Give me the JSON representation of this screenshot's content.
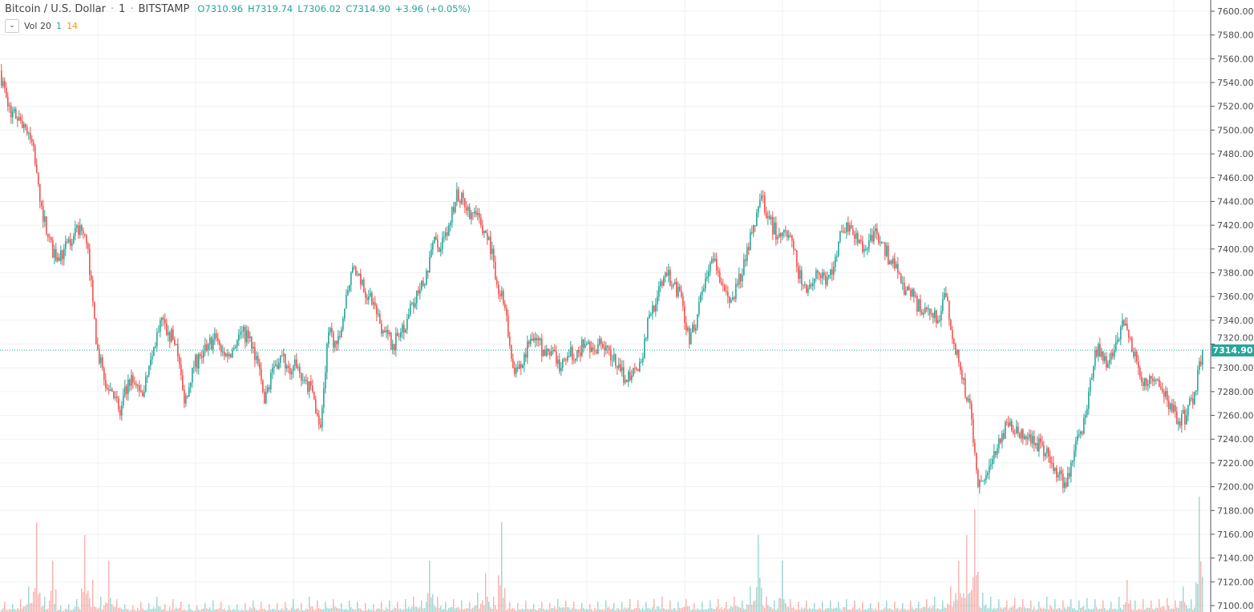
{
  "header": {
    "symbol": "Bitcoin / U.S. Dollar",
    "sep1": "·",
    "interval": "1",
    "sep2": "·",
    "exchange": "BITSTAMP",
    "open": "O7310.96",
    "high": "H7319.74",
    "low": "L7306.02",
    "close": "C7314.90",
    "change": "+3.96 (+0.05%)"
  },
  "volume_legend": {
    "label": "Vol 20",
    "value1": "1",
    "value2": "14",
    "value1_color": "#26a69a",
    "value2_color": "#f7931a"
  },
  "colors": {
    "up": "#26a69a",
    "down": "#ef5350",
    "grid": "#eef0f3",
    "last_price": "#26a69a"
  },
  "chart_data": {
    "type": "candlestick",
    "title": "Bitcoin / U.S. Dollar · 1 · BITSTAMP",
    "ylim": [
      7100,
      7600
    ],
    "grid": true,
    "y_ticks": [
      "7600.00",
      "7580.00",
      "7560.00",
      "7540.00",
      "7520.00",
      "7500.00",
      "7480.00",
      "7460.00",
      "7440.00",
      "7420.00",
      "7400.00",
      "7380.00",
      "7360.00",
      "7340.00",
      "7320.00",
      "7300.00",
      "7280.00",
      "7260.00",
      "7240.00",
      "7220.00",
      "7200.00",
      "7180.00",
      "7160.00",
      "7140.00",
      "7120.00",
      "7100.00"
    ],
    "last_price": "7314.90",
    "close": [
      7550,
      7520,
      7510,
      7505,
      7490,
      7440,
      7410,
      7390,
      7400,
      7405,
      7420,
      7400,
      7320,
      7290,
      7280,
      7260,
      7290,
      7285,
      7280,
      7310,
      7340,
      7330,
      7320,
      7270,
      7300,
      7310,
      7320,
      7325,
      7310,
      7315,
      7330,
      7325,
      7310,
      7270,
      7300,
      7310,
      7300,
      7300,
      7290,
      7280,
      7250,
      7330,
      7320,
      7350,
      7385,
      7370,
      7360,
      7345,
      7330,
      7320,
      7330,
      7345,
      7365,
      7370,
      7405,
      7400,
      7420,
      7450,
      7435,
      7430,
      7420,
      7410,
      7370,
      7350,
      7300,
      7300,
      7320,
      7325,
      7310,
      7315,
      7300,
      7310,
      7315,
      7320,
      7315,
      7320,
      7315,
      7300,
      7290,
      7300,
      7305,
      7345,
      7360,
      7380,
      7370,
      7360,
      7320,
      7345,
      7375,
      7390,
      7370,
      7355,
      7370,
      7390,
      7420,
      7445,
      7425,
      7410,
      7415,
      7400,
      7370,
      7370,
      7380,
      7370,
      7385,
      7415,
      7420,
      7405,
      7400,
      7415,
      7405,
      7390,
      7380,
      7365,
      7360,
      7345,
      7345,
      7340,
      7360,
      7320,
      7290,
      7270,
      7200,
      7210,
      7230,
      7245,
      7255,
      7245,
      7240,
      7235,
      7235,
      7220,
      7210,
      7200,
      7230,
      7245,
      7290,
      7320,
      7300,
      7315,
      7340,
      7325,
      7300,
      7285,
      7290,
      7280,
      7270,
      7255,
      7260,
      7280,
      7314.9
    ],
    "volume": [
      5,
      8,
      6,
      10,
      20,
      70,
      12,
      40,
      5,
      6,
      10,
      60,
      25,
      12,
      40,
      10,
      6,
      5,
      8,
      7,
      12,
      6,
      10,
      8,
      6,
      5,
      7,
      9,
      8,
      5,
      6,
      7,
      9,
      8,
      6,
      7,
      8,
      10,
      7,
      12,
      9,
      8,
      10,
      7,
      9,
      8,
      7,
      6,
      8,
      9,
      8,
      10,
      12,
      9,
      40,
      12,
      8,
      10,
      9,
      8,
      15,
      30,
      12,
      70,
      8,
      7,
      9,
      6,
      8,
      7,
      10,
      9,
      8,
      7,
      6,
      8,
      9,
      7,
      8,
      10,
      9,
      8,
      10,
      12,
      9,
      8,
      10,
      7,
      8,
      9,
      10,
      8,
      12,
      9,
      20,
      60,
      12,
      9,
      40,
      10,
      8,
      9,
      7,
      8,
      9,
      8,
      10,
      9,
      8,
      7,
      8,
      9,
      8,
      7,
      9,
      8,
      10,
      12,
      9,
      20,
      40,
      60,
      80,
      15,
      12,
      10,
      9,
      11,
      10,
      9,
      8,
      12,
      10,
      9,
      10,
      9,
      11,
      10,
      9,
      8,
      12,
      25,
      9,
      10,
      9,
      10,
      11,
      9,
      20,
      10,
      90
    ]
  }
}
